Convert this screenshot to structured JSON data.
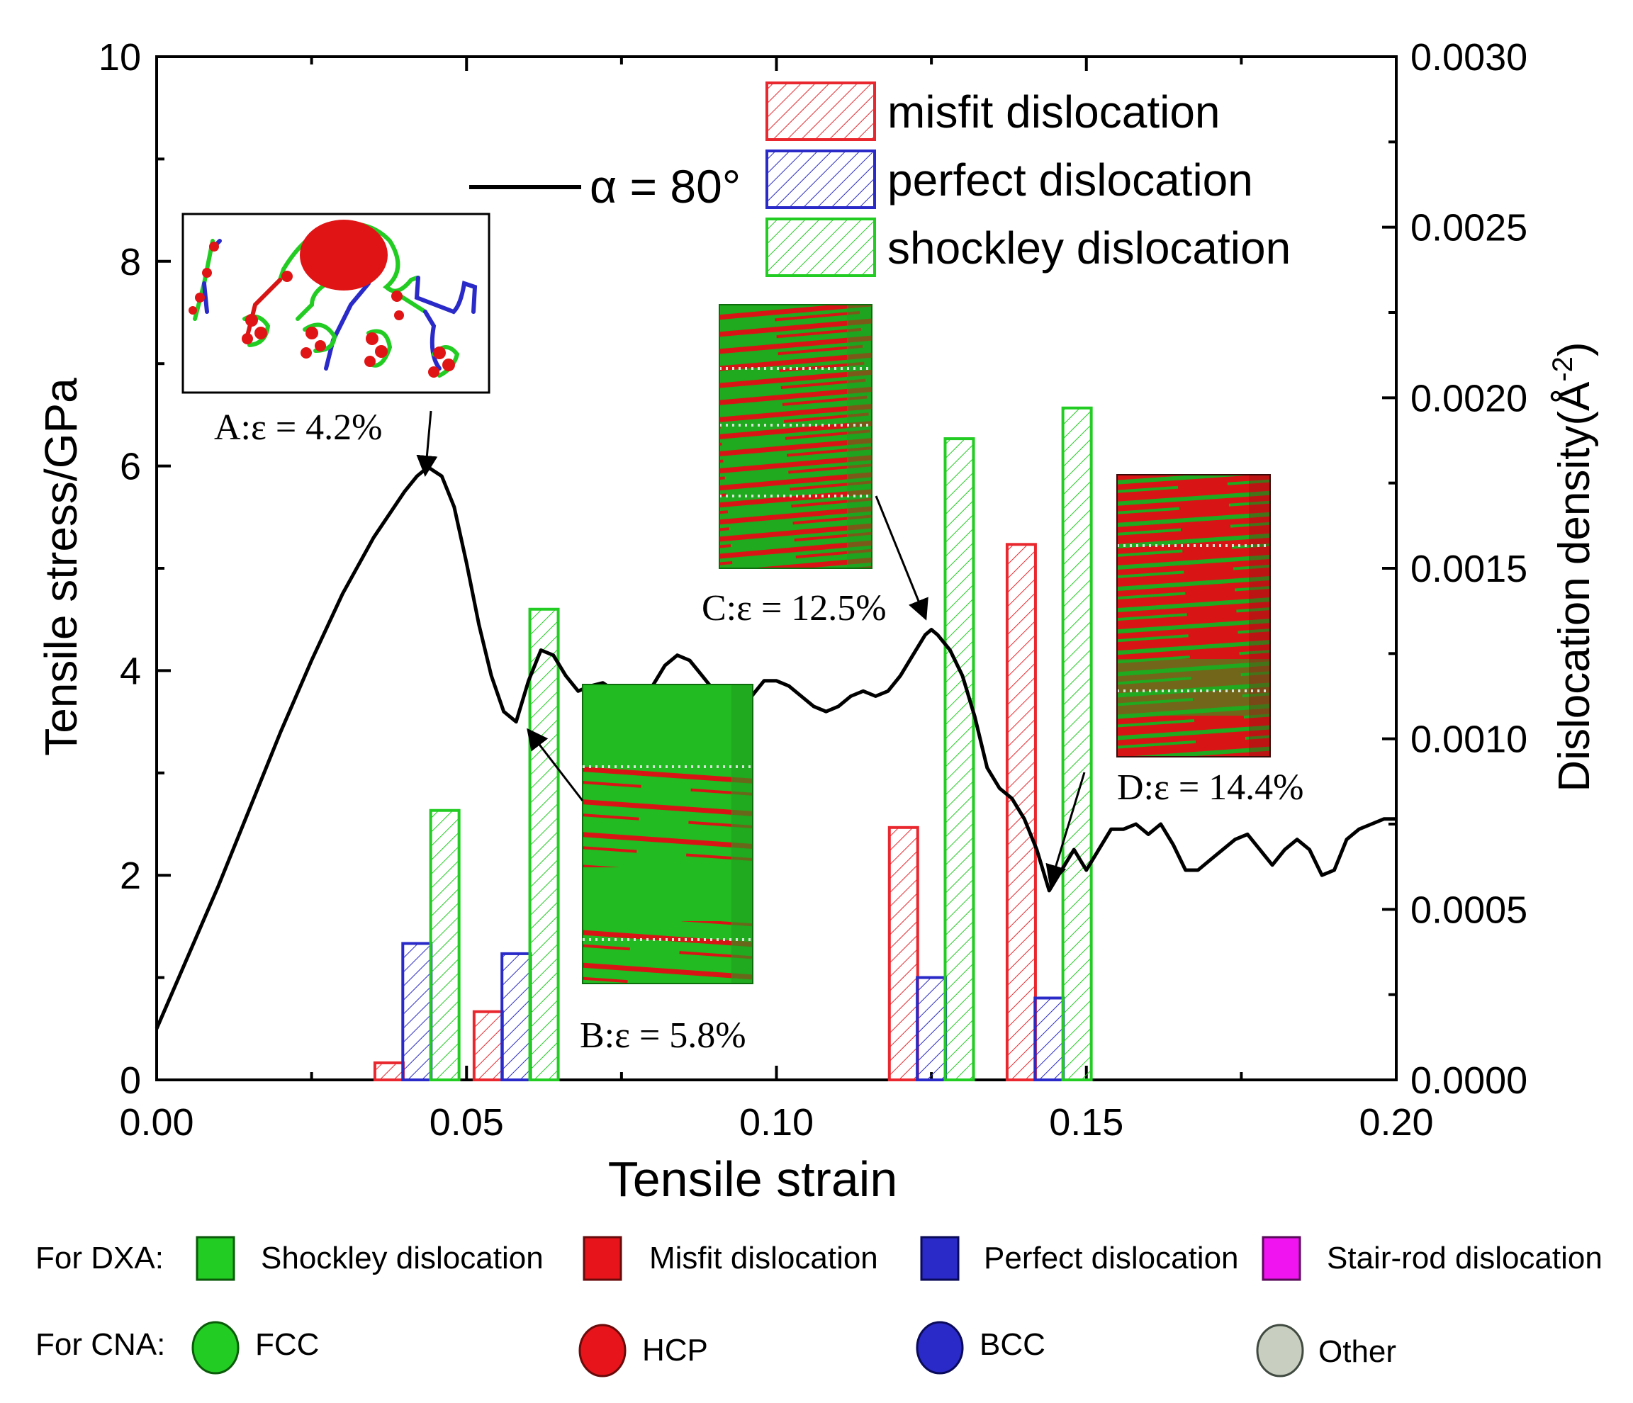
{
  "chart_data": {
    "type": "line+bar",
    "xlabel": "Tensile strain",
    "ylabel_left": "Tensile stress/GPa",
    "ylabel_right_main": "Dislocation density(",
    "ylabel_right_unit": "Å",
    "ylabel_right_exp": "-2",
    "ylabel_right_close": ")",
    "xlim": [
      0,
      0.2
    ],
    "ylim_left": [
      0,
      10
    ],
    "ylim_right": [
      0,
      0.003
    ],
    "x_ticks": [
      "0.00",
      "0.05",
      "0.10",
      "0.15",
      "0.20"
    ],
    "y_left_ticks": [
      "0",
      "2",
      "4",
      "6",
      "8",
      "10"
    ],
    "y_right_ticks": [
      "0.0000",
      "0.0005",
      "0.0010",
      "0.0015",
      "0.0020",
      "0.0025",
      "0.0030"
    ],
    "curve_label": "α = 80°",
    "stress_curve": {
      "name": "α = 80°",
      "x": [
        0,
        0.005,
        0.01,
        0.015,
        0.02,
        0.025,
        0.03,
        0.035,
        0.04,
        0.042,
        0.043,
        0.044,
        0.046,
        0.048,
        0.05,
        0.052,
        0.054,
        0.056,
        0.058,
        0.06,
        0.062,
        0.064,
        0.066,
        0.068,
        0.07,
        0.072,
        0.074,
        0.076,
        0.078,
        0.08,
        0.082,
        0.084,
        0.086,
        0.088,
        0.09,
        0.092,
        0.094,
        0.096,
        0.098,
        0.1,
        0.102,
        0.104,
        0.106,
        0.108,
        0.11,
        0.112,
        0.114,
        0.116,
        0.118,
        0.12,
        0.122,
        0.124,
        0.125,
        0.126,
        0.128,
        0.13,
        0.132,
        0.134,
        0.136,
        0.138,
        0.14,
        0.142,
        0.144,
        0.146,
        0.148,
        0.15,
        0.152,
        0.154,
        0.156,
        0.158,
        0.16,
        0.162,
        0.164,
        0.166,
        0.168,
        0.17,
        0.172,
        0.174,
        0.176,
        0.178,
        0.18,
        0.182,
        0.184,
        0.186,
        0.188,
        0.19,
        0.192,
        0.194,
        0.196,
        0.198,
        0.2
      ],
      "y": [
        0.5,
        1.2,
        1.9,
        2.65,
        3.4,
        4.1,
        4.75,
        5.3,
        5.75,
        5.9,
        5.95,
        5.98,
        5.9,
        5.6,
        5.05,
        4.45,
        3.95,
        3.6,
        3.5,
        3.9,
        4.2,
        4.15,
        3.95,
        3.8,
        3.85,
        3.88,
        3.8,
        3.85,
        3.75,
        3.85,
        4.05,
        4.15,
        4.1,
        3.95,
        3.8,
        3.85,
        3.65,
        3.75,
        3.9,
        3.9,
        3.85,
        3.75,
        3.65,
        3.6,
        3.65,
        3.75,
        3.8,
        3.75,
        3.8,
        3.95,
        4.15,
        4.35,
        4.4,
        4.35,
        4.2,
        3.95,
        3.55,
        3.05,
        2.85,
        2.75,
        2.55,
        2.25,
        1.85,
        2.05,
        2.25,
        2.05,
        2.25,
        2.45,
        2.45,
        2.5,
        2.4,
        2.5,
        2.3,
        2.05,
        2.05,
        2.15,
        2.25,
        2.35,
        2.4,
        2.25,
        2.1,
        2.25,
        2.35,
        2.25,
        2.0,
        2.05,
        2.35,
        2.45,
        2.5,
        2.55,
        2.55
      ]
    },
    "bar_legend": [
      {
        "name": "misfit dislocation",
        "color": "#e8282e"
      },
      {
        "name": "perfect dislocation",
        "color": "#2a2ac8"
      },
      {
        "name": "shockley dislocation",
        "color": "#22cc22"
      }
    ],
    "bars": [
      {
        "type": "misfit",
        "x": 0.0375,
        "density": 5e-05
      },
      {
        "type": "perfect",
        "x": 0.042,
        "density": 0.0004
      },
      {
        "type": "shockley",
        "x": 0.0465,
        "density": 0.00079
      },
      {
        "type": "misfit",
        "x": 0.0535,
        "density": 0.0002
      },
      {
        "type": "perfect",
        "x": 0.058,
        "density": 0.00037
      },
      {
        "type": "shockley",
        "x": 0.0625,
        "density": 0.00138
      },
      {
        "type": "misfit",
        "x": 0.1205,
        "density": 0.00074
      },
      {
        "type": "perfect",
        "x": 0.125,
        "density": 0.0003
      },
      {
        "type": "shockley",
        "x": 0.1295,
        "density": 0.00188
      },
      {
        "type": "misfit",
        "x": 0.1395,
        "density": 0.00157
      },
      {
        "type": "perfect",
        "x": 0.144,
        "density": 0.00024
      },
      {
        "type": "shockley",
        "x": 0.1485,
        "density": 0.00197
      }
    ],
    "annotations": [
      {
        "id": "A",
        "label": "A:ε = 4.2%",
        "strain": 0.042
      },
      {
        "id": "B",
        "label": "B:ε = 5.8%",
        "strain": 0.058
      },
      {
        "id": "C",
        "label": "C:ε = 12.5%",
        "strain": 0.125
      },
      {
        "id": "D",
        "label": "D:ε = 14.4%",
        "strain": 0.144
      }
    ]
  },
  "bottom_legend": {
    "dxa_title": "For DXA:",
    "dxa_items": [
      {
        "label": "Shockley dislocation",
        "color": "#22cc22"
      },
      {
        "label": "Misfit dislocation",
        "color": "#e8141c"
      },
      {
        "label": "Perfect dislocation",
        "color": "#2a2ac8"
      },
      {
        "label": "Stair-rod dislocation",
        "color": "#f014f0"
      }
    ],
    "cna_title": "For CNA:",
    "cna_items": [
      {
        "label": "FCC",
        "color": "#22cc22"
      },
      {
        "label": "HCP",
        "color": "#e8141c"
      },
      {
        "label": "BCC",
        "color": "#2a2ac8"
      },
      {
        "label": "Other",
        "color": "#c8cfc0"
      }
    ]
  }
}
